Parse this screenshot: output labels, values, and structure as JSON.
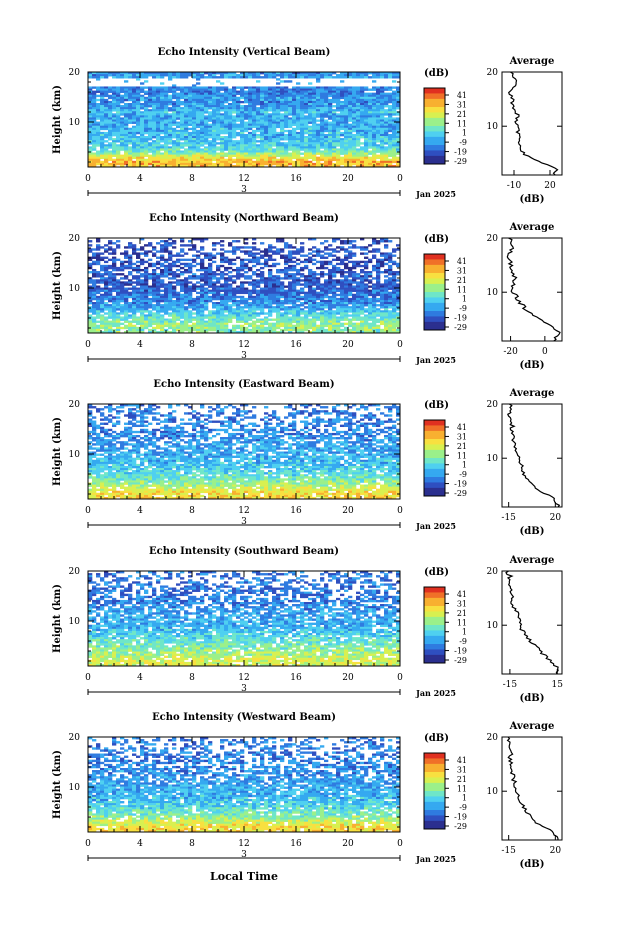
{
  "figure": {
    "xlabel": "Local Time",
    "date_label": "Jan 2025",
    "day_marker": "3",
    "colorbar_unit": "(dB)",
    "colorbar_ticks": [
      "41",
      "31",
      "21",
      "11",
      "1",
      "-9",
      "-19",
      "-29"
    ],
    "palette": [
      "#2b2f8f",
      "#2f4fc0",
      "#2f7be0",
      "#35a9f0",
      "#4fd0f0",
      "#6fe6c8",
      "#9bf08a",
      "#d8f050",
      "#f8e040",
      "#f8b030",
      "#f07028",
      "#e03020"
    ]
  },
  "chart_data": [
    {
      "type": "heatmap",
      "title": "Echo Intensity (Vertical Beam)",
      "ylabel": "Height (km)",
      "xticks": [
        "0",
        "4",
        "8",
        "12",
        "16",
        "20",
        "0"
      ],
      "yticks": [
        "20",
        "10"
      ],
      "xlim": [
        0,
        24
      ],
      "ylim": [
        1,
        20
      ],
      "colorbar": [
        -29,
        41
      ],
      "avg_title": "Average",
      "avg_xlabel": "(dB)",
      "avg_xticks": [
        "-10",
        "20"
      ],
      "avg_yticks": [
        "20",
        "10"
      ],
      "avg_xlim": [
        -20,
        30
      ],
      "profile": {
        "heights": [
          1.5,
          2,
          2.5,
          3,
          3.5,
          4,
          5,
          6,
          7,
          8,
          9,
          10,
          11,
          12,
          13,
          14,
          15,
          16,
          17,
          18,
          19,
          20
        ],
        "values": [
          24,
          26,
          22,
          18,
          10,
          4,
          -2,
          -4,
          -6,
          -6,
          -7,
          -7,
          -8,
          -6,
          -10,
          -12,
          -10,
          -14,
          -12,
          -8,
          -10,
          -12
        ]
      }
    },
    {
      "type": "heatmap",
      "title": "Echo Intensity (Northward Beam)",
      "ylabel": "Height (km)",
      "xticks": [
        "0",
        "4",
        "8",
        "12",
        "16",
        "20",
        "0"
      ],
      "yticks": [
        "20",
        "10"
      ],
      "xlim": [
        0,
        24
      ],
      "ylim": [
        1,
        20
      ],
      "colorbar": [
        -29,
        41
      ],
      "avg_title": "Average",
      "avg_xlabel": "(dB)",
      "avg_xticks": [
        "-20",
        "0"
      ],
      "avg_yticks": [
        "20",
        "10"
      ],
      "avg_xlim": [
        -25,
        10
      ],
      "profile": {
        "heights": [
          1.5,
          2,
          2.5,
          3,
          3.5,
          4,
          5,
          6,
          7,
          8,
          9,
          10,
          11,
          12,
          13,
          14,
          15,
          16,
          17,
          18,
          19,
          20
        ],
        "values": [
          6,
          8,
          8,
          7,
          5,
          2,
          -3,
          -8,
          -12,
          -14,
          -16,
          -18,
          -19,
          -18,
          -18,
          -20,
          -19,
          -21,
          -20,
          -19,
          -21,
          -20
        ]
      }
    },
    {
      "type": "heatmap",
      "title": "Echo Intensity (Eastward Beam)",
      "ylabel": "Height (km)",
      "xticks": [
        "0",
        "4",
        "8",
        "12",
        "16",
        "20",
        "0"
      ],
      "yticks": [
        "20",
        "10"
      ],
      "xlim": [
        0,
        24
      ],
      "ylim": [
        1,
        20
      ],
      "colorbar": [
        -29,
        41
      ],
      "avg_title": "Average",
      "avg_xlabel": "(dB)",
      "avg_xticks": [
        "-15",
        "20"
      ],
      "avg_yticks": [
        "20",
        "10"
      ],
      "avg_xlim": [
        -20,
        25
      ],
      "profile": {
        "heights": [
          1.5,
          2,
          2.5,
          3,
          3.5,
          4,
          5,
          6,
          7,
          8,
          9,
          10,
          11,
          12,
          13,
          14,
          15,
          16,
          17,
          18,
          19,
          20
        ],
        "values": [
          22,
          20,
          19,
          16,
          12,
          8,
          4,
          0,
          -3,
          -5,
          -6,
          -7,
          -9,
          -10,
          -11,
          -12,
          -13,
          -12,
          -14,
          -15,
          -14,
          -13
        ]
      }
    },
    {
      "type": "heatmap",
      "title": "Echo Intensity (Southward Beam)",
      "ylabel": "Height (km)",
      "xticks": [
        "0",
        "4",
        "8",
        "12",
        "16",
        "20",
        "0"
      ],
      "yticks": [
        "20",
        "10"
      ],
      "xlim": [
        0,
        24
      ],
      "ylim": [
        1,
        20
      ],
      "colorbar": [
        -29,
        41
      ],
      "avg_title": "Average",
      "avg_xlabel": "(dB)",
      "avg_xticks": [
        "-15",
        "15"
      ],
      "avg_yticks": [
        "20",
        "10"
      ],
      "avg_xlim": [
        -20,
        18
      ],
      "profile": {
        "heights": [
          1.5,
          2,
          2.5,
          3,
          3.5,
          4,
          5,
          6,
          7,
          8,
          9,
          10,
          11,
          12,
          13,
          14,
          15,
          16,
          17,
          18,
          19,
          20
        ],
        "values": [
          15,
          16,
          14,
          12,
          10,
          8,
          5,
          2,
          -2,
          -5,
          -7,
          -8,
          -9,
          -10,
          -12,
          -13,
          -14,
          -15,
          -15,
          -16,
          -15,
          -17
        ]
      }
    },
    {
      "type": "heatmap",
      "title": "Echo Intensity (Westward Beam)",
      "ylabel": "Height (km)",
      "xticks": [
        "0",
        "4",
        "8",
        "12",
        "16",
        "20",
        "0"
      ],
      "yticks": [
        "20",
        "10"
      ],
      "xlim": [
        0,
        24
      ],
      "ylim": [
        1,
        20
      ],
      "colorbar": [
        -29,
        41
      ],
      "avg_title": "Average",
      "avg_xlabel": "(dB)",
      "avg_xticks": [
        "-15",
        "20"
      ],
      "avg_yticks": [
        "20",
        "10"
      ],
      "avg_xlim": [
        -20,
        25
      ],
      "profile": {
        "heights": [
          1.5,
          2,
          2.5,
          3,
          3.5,
          4,
          5,
          6,
          7,
          8,
          9,
          10,
          11,
          12,
          13,
          14,
          15,
          16,
          17,
          18,
          19,
          20
        ],
        "values": [
          21,
          20,
          18,
          15,
          11,
          7,
          3,
          -1,
          -4,
          -6,
          -7,
          -9,
          -10,
          -11,
          -12,
          -12,
          -13,
          -14,
          -13,
          -15,
          -14,
          -15
        ]
      }
    }
  ]
}
